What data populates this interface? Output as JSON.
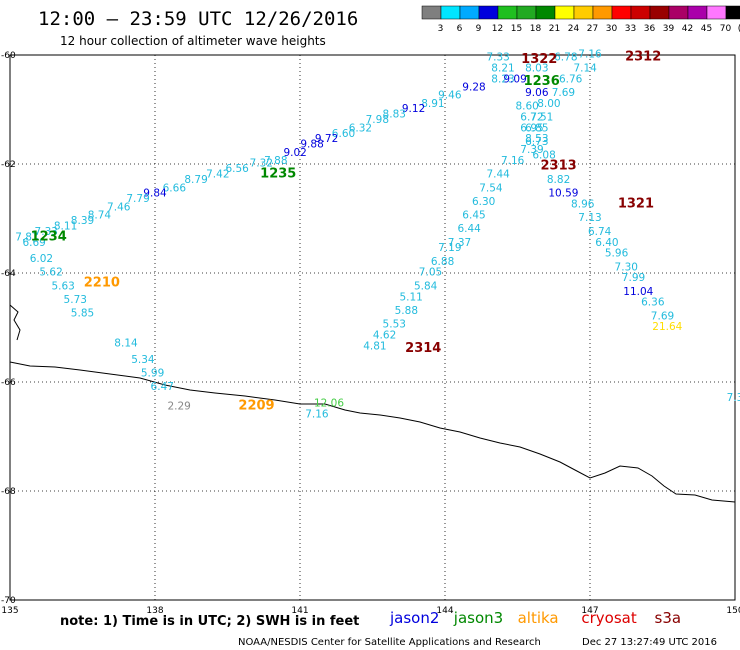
{
  "title": "12:00 – 23:59 UTC 12/26/2016",
  "subtitle": "12 hour collection of altimeter wave heights",
  "colorbar": {
    "colors": [
      "#7f7f7f",
      "#00e5ff",
      "#00aaff",
      "#0000dd",
      "#1fbf1f",
      "#22aa22",
      "#008800",
      "#ffff00",
      "#ffcc00",
      "#ff9900",
      "#ff0000",
      "#cc0000",
      "#990000",
      "#aa0066",
      "#aa00aa",
      "#ff77ff",
      "#000000"
    ],
    "labels": [
      "3",
      "6",
      "9",
      "12",
      "15",
      "18",
      "21",
      "24",
      "27",
      "30",
      "33",
      "36",
      "39",
      "42",
      "45",
      "70",
      "(ft)"
    ]
  },
  "axes": {
    "lat_ticks": [
      "-60",
      "-62",
      "-64",
      "-66",
      "-68",
      "-70"
    ],
    "lon_ticks": [
      "135",
      "138",
      "141",
      "144",
      "147",
      "150"
    ]
  },
  "observations": [
    {
      "t": "7.33",
      "c": "#22bbdd",
      "lon": 145.1,
      "lat": -60.1
    },
    {
      "t": "8.21",
      "c": "#22bbdd",
      "lon": 145.2,
      "lat": -60.3
    },
    {
      "t": "8.03",
      "c": "#22bbdd",
      "lon": 145.9,
      "lat": -60.3
    },
    {
      "t": "8.23",
      "c": "#22bbdd",
      "lon": 145.2,
      "lat": -60.5
    },
    {
      "t": "9.09",
      "c": "#0000dd",
      "lon": 145.45,
      "lat": -60.5
    },
    {
      "t": "9.06",
      "c": "#0000dd",
      "lon": 145.9,
      "lat": -60.75
    },
    {
      "t": "8.60",
      "c": "#22bbdd",
      "lon": 145.7,
      "lat": -61.0
    },
    {
      "t": "6.72",
      "c": "#22bbdd",
      "lon": 145.8,
      "lat": -61.2
    },
    {
      "t": "6.95",
      "c": "#22bbdd",
      "lon": 145.8,
      "lat": -61.4
    },
    {
      "t": "8.53",
      "c": "#22bbdd",
      "lon": 145.9,
      "lat": -61.6
    },
    {
      "t": "7.39",
      "c": "#22bbdd",
      "lon": 145.8,
      "lat": -61.8
    },
    {
      "t": "7.16",
      "c": "#22bbdd",
      "lon": 145.4,
      "lat": -62.0
    },
    {
      "t": "7.44",
      "c": "#22bbdd",
      "lon": 145.1,
      "lat": -62.25
    },
    {
      "t": "7.54",
      "c": "#22bbdd",
      "lon": 144.95,
      "lat": -62.5
    },
    {
      "t": "6.30",
      "c": "#22bbdd",
      "lon": 144.8,
      "lat": -62.75
    },
    {
      "t": "6.45",
      "c": "#22bbdd",
      "lon": 144.6,
      "lat": -63.0
    },
    {
      "t": "6.44",
      "c": "#22bbdd",
      "lon": 144.5,
      "lat": -63.25
    },
    {
      "t": "7.37",
      "c": "#22bbdd",
      "lon": 144.3,
      "lat": -63.5
    },
    {
      "t": "7.19",
      "c": "#22bbdd",
      "lon": 144.1,
      "lat": -63.6
    },
    {
      "t": "6.88",
      "c": "#22bbdd",
      "lon": 143.95,
      "lat": -63.85
    },
    {
      "t": "7.05",
      "c": "#22bbdd",
      "lon": 143.7,
      "lat": -64.05
    },
    {
      "t": "5.84",
      "c": "#22bbdd",
      "lon": 143.6,
      "lat": -64.3
    },
    {
      "t": "5.11",
      "c": "#22bbdd",
      "lon": 143.3,
      "lat": -64.5
    },
    {
      "t": "5.88",
      "c": "#22bbdd",
      "lon": 143.2,
      "lat": -64.75
    },
    {
      "t": "5.53",
      "c": "#22bbdd",
      "lon": 142.95,
      "lat": -65.0
    },
    {
      "t": "4.62",
      "c": "#22bbdd",
      "lon": 142.75,
      "lat": -65.2
    },
    {
      "t": "4.81",
      "c": "#22bbdd",
      "lon": 142.55,
      "lat": -65.4
    },
    {
      "t": "6.78",
      "c": "#22bbdd",
      "lon": 146.5,
      "lat": -60.1
    },
    {
      "t": "7.14",
      "c": "#22bbdd",
      "lon": 146.9,
      "lat": -60.3
    },
    {
      "t": "6.76",
      "c": "#22bbdd",
      "lon": 146.6,
      "lat": -60.5
    },
    {
      "t": "7.69",
      "c": "#22bbdd",
      "lon": 146.45,
      "lat": -60.75
    },
    {
      "t": "8.00",
      "c": "#22bbdd",
      "lon": 146.15,
      "lat": -60.95
    },
    {
      "t": "7.51",
      "c": "#22bbdd",
      "lon": 146.0,
      "lat": -61.2
    },
    {
      "t": "6.85",
      "c": "#22bbdd",
      "lon": 145.9,
      "lat": -61.4
    },
    {
      "t": "6.73",
      "c": "#22bbdd",
      "lon": 145.9,
      "lat": -61.65
    },
    {
      "t": "6.08",
      "c": "#22bbdd",
      "lon": 146.05,
      "lat": -61.9
    },
    {
      "t": "8.82",
      "c": "#22bbdd",
      "lon": 146.35,
      "lat": -62.35
    },
    {
      "t": "10.59",
      "c": "#0000dd",
      "lon": 146.45,
      "lat": -62.6
    },
    {
      "t": "8.96",
      "c": "#22bbdd",
      "lon": 146.85,
      "lat": -62.8
    },
    {
      "t": "7.13",
      "c": "#22bbdd",
      "lon": 147.0,
      "lat": -63.05
    },
    {
      "t": "6.74",
      "c": "#22bbdd",
      "lon": 147.2,
      "lat": -63.3
    },
    {
      "t": "6.40",
      "c": "#22bbdd",
      "lon": 147.35,
      "lat": -63.5
    },
    {
      "t": "5.96",
      "c": "#22bbdd",
      "lon": 147.55,
      "lat": -63.7
    },
    {
      "t": "7.30",
      "c": "#22bbdd",
      "lon": 147.75,
      "lat": -63.95
    },
    {
      "t": "7.99",
      "c": "#22bbdd",
      "lon": 147.9,
      "lat": -64.15
    },
    {
      "t": "11.04",
      "c": "#0000dd",
      "lon": 148.0,
      "lat": -64.4
    },
    {
      "t": "6.36",
      "c": "#22bbdd",
      "lon": 148.3,
      "lat": -64.6
    },
    {
      "t": "7.69",
      "c": "#22bbdd",
      "lon": 148.5,
      "lat": -64.85
    },
    {
      "t": "21.64",
      "c": "#ffdd00",
      "lon": 148.6,
      "lat": -65.05
    },
    {
      "t": "7.16",
      "c": "#22bbdd",
      "lon": 147.0,
      "lat": -60.05
    },
    {
      "t": "9.28",
      "c": "#0000dd",
      "lon": 144.6,
      "lat": -60.65
    },
    {
      "t": "9.46",
      "c": "#22bbdd",
      "lon": 144.1,
      "lat": -60.8
    },
    {
      "t": "8.91",
      "c": "#22bbdd",
      "lon": 143.75,
      "lat": -60.95
    },
    {
      "t": "9.12",
      "c": "#0000dd",
      "lon": 143.35,
      "lat": -61.05
    },
    {
      "t": "8.83",
      "c": "#22bbdd",
      "lon": 142.95,
      "lat": -61.15
    },
    {
      "t": "7.98",
      "c": "#22bbdd",
      "lon": 142.6,
      "lat": -61.25
    },
    {
      "t": "6.32",
      "c": "#22bbdd",
      "lon": 142.25,
      "lat": -61.4
    },
    {
      "t": "6.60",
      "c": "#22bbdd",
      "lon": 141.9,
      "lat": -61.5
    },
    {
      "t": "9.72",
      "c": "#0000dd",
      "lon": 141.55,
      "lat": -61.6
    },
    {
      "t": "9.88",
      "c": "#0000dd",
      "lon": 141.25,
      "lat": -61.7
    },
    {
      "t": "9.02",
      "c": "#0000dd",
      "lon": 140.9,
      "lat": -61.85
    },
    {
      "t": "7.88",
      "c": "#22bbdd",
      "lon": 140.5,
      "lat": -62.0
    },
    {
      "t": "7.32",
      "c": "#22bbdd",
      "lon": 140.2,
      "lat": -62.05
    },
    {
      "t": "6.56",
      "c": "#22bbdd",
      "lon": 139.7,
      "lat": -62.15
    },
    {
      "t": "7.42",
      "c": "#22bbdd",
      "lon": 139.3,
      "lat": -62.25
    },
    {
      "t": "8.79",
      "c": "#22bbdd",
      "lon": 138.85,
      "lat": -62.35
    },
    {
      "t": "6.66",
      "c": "#22bbdd",
      "lon": 138.4,
      "lat": -62.5
    },
    {
      "t": "9.84",
      "c": "#0000dd",
      "lon": 138.0,
      "lat": -62.6
    },
    {
      "t": "7.79",
      "c": "#22bbdd",
      "lon": 137.65,
      "lat": -62.7
    },
    {
      "t": "7.46",
      "c": "#22bbdd",
      "lon": 137.25,
      "lat": -62.85
    },
    {
      "t": "8.74",
      "c": "#22bbdd",
      "lon": 136.85,
      "lat": -63.0
    },
    {
      "t": "8.39",
      "c": "#22bbdd",
      "lon": 136.5,
      "lat": -63.1
    },
    {
      "t": "8.11",
      "c": "#22bbdd",
      "lon": 136.15,
      "lat": -63.2
    },
    {
      "t": "7.33",
      "c": "#22bbdd",
      "lon": 135.75,
      "lat": -63.3
    },
    {
      "t": "7.87",
      "c": "#22bbdd",
      "lon": 135.35,
      "lat": -63.4
    },
    {
      "t": "6.69",
      "c": "#22bbdd",
      "lon": 135.5,
      "lat": -63.5
    },
    {
      "t": "6.02",
      "c": "#22bbdd",
      "lon": 135.65,
      "lat": -63.8
    },
    {
      "t": "5.62",
      "c": "#22bbdd",
      "lon": 135.85,
      "lat": -64.05
    },
    {
      "t": "5.63",
      "c": "#22bbdd",
      "lon": 136.1,
      "lat": -64.3
    },
    {
      "t": "5.73",
      "c": "#22bbdd",
      "lon": 136.35,
      "lat": -64.55
    },
    {
      "t": "5.85",
      "c": "#22bbdd",
      "lon": 136.5,
      "lat": -64.8
    },
    {
      "t": "8.14",
      "c": "#22bbdd",
      "lon": 137.4,
      "lat": -65.35
    },
    {
      "t": "5.34",
      "c": "#22bbdd",
      "lon": 137.75,
      "lat": -65.65
    },
    {
      "t": "5.99",
      "c": "#22bbdd",
      "lon": 137.95,
      "lat": -65.9
    },
    {
      "t": "6.47",
      "c": "#22bbdd",
      "lon": 138.15,
      "lat": -66.15
    },
    {
      "t": "2.29",
      "c": "#888888",
      "lon": 138.5,
      "lat": -66.5
    },
    {
      "t": "12.06",
      "c": "#44cc44",
      "lon": 141.6,
      "lat": -66.45
    },
    {
      "t": "7.16",
      "c": "#22bbdd",
      "lon": 141.35,
      "lat": -66.65
    },
    {
      "t": "7.3",
      "c": "#22bbdd",
      "lon": 150.0,
      "lat": -66.35
    }
  ],
  "track_labels": [
    {
      "t": "1322",
      "c": "#880000",
      "lon": 145.95,
      "lat": -60.15
    },
    {
      "t": "2312",
      "c": "#880000",
      "lon": 148.1,
      "lat": -60.1
    },
    {
      "t": "1236",
      "c": "#008800",
      "lon": 146.0,
      "lat": -60.55
    },
    {
      "t": "2313",
      "c": "#880000",
      "lon": 146.35,
      "lat": -62.1
    },
    {
      "t": "1321",
      "c": "#880000",
      "lon": 147.95,
      "lat": -62.8
    },
    {
      "t": "1235",
      "c": "#008800",
      "lon": 140.55,
      "lat": -62.25
    },
    {
      "t": "1234",
      "c": "#008800",
      "lon": 135.8,
      "lat": -63.4
    },
    {
      "t": "2210",
      "c": "#ff9900",
      "lon": 136.9,
      "lat": -64.25
    },
    {
      "t": "2314",
      "c": "#880000",
      "lon": 143.55,
      "lat": -65.45
    },
    {
      "t": "2209",
      "c": "#ff9900",
      "lon": 140.1,
      "lat": -66.5
    }
  ],
  "footer": {
    "note": "note: 1) Time is in UTC; 2) SWH is in feet",
    "satellites": [
      {
        "name": "jason2",
        "color": "#0000dd"
      },
      {
        "name": "jason3",
        "color": "#008800"
      },
      {
        "name": "altika",
        "color": "#ff9900"
      },
      {
        "name": "cryosat",
        "color": "#dd0000"
      },
      {
        "name": "s3a",
        "color": "#880000"
      }
    ],
    "credit": "NOAA/NESDIS Center for Satellite Applications and Research",
    "timestamp": "Dec 27 13:27:49 UTC 2016"
  }
}
